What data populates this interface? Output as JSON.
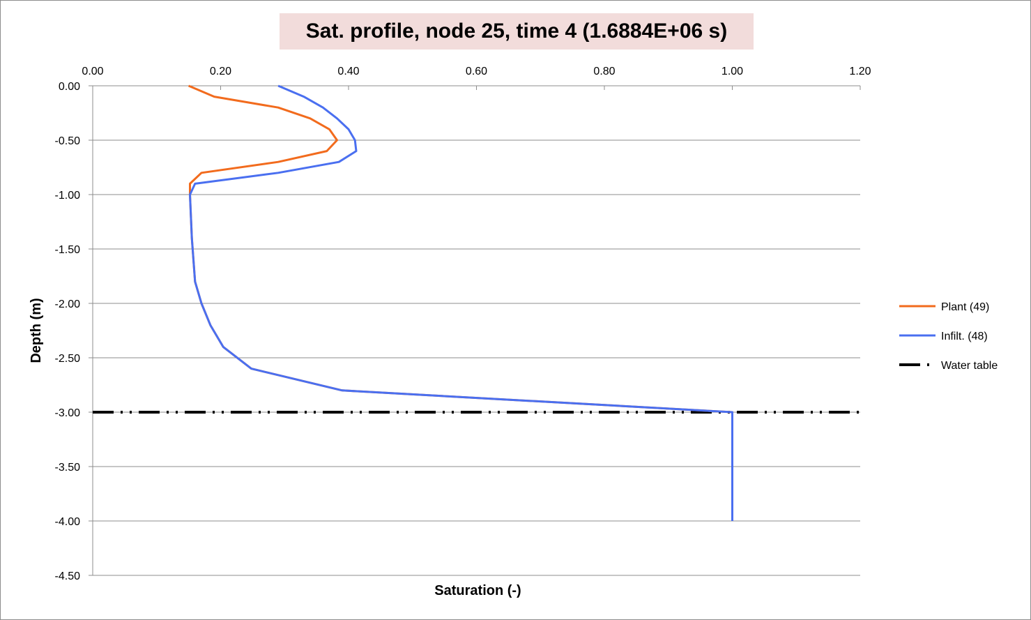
{
  "chart_data": {
    "type": "line",
    "title": "Sat. profile, node 25, time 4 (1.6884E+06 s)",
    "xlabel": "Saturation (-)",
    "ylabel": "Depth (m)",
    "xlim": [
      0,
      1.2
    ],
    "ylim": [
      -4.5,
      0
    ],
    "x_ticks": [
      "0.00",
      "0.20",
      "0.40",
      "0.60",
      "0.80",
      "1.00",
      "1.20"
    ],
    "y_ticks": [
      "0.00",
      "-0.50",
      "-1.00",
      "-1.50",
      "-2.00",
      "-2.50",
      "-3.00",
      "-3.50",
      "-4.00",
      "-4.50"
    ],
    "x_axis_position": "top",
    "grid": "horizontal",
    "legend_position": "right",
    "series": [
      {
        "name": "Plant (49)",
        "color": "#f26b1d",
        "line_style": "solid",
        "points": [
          [
            0.15,
            0.0
          ],
          [
            0.19,
            -0.1
          ],
          [
            0.29,
            -0.2
          ],
          [
            0.34,
            -0.3
          ],
          [
            0.37,
            -0.4
          ],
          [
            0.382,
            -0.5
          ],
          [
            0.366,
            -0.6
          ],
          [
            0.29,
            -0.7
          ],
          [
            0.17,
            -0.8
          ],
          [
            0.152,
            -0.9
          ],
          [
            0.152,
            -1.0
          ],
          [
            0.155,
            -1.4
          ],
          [
            0.16,
            -1.8
          ],
          [
            0.17,
            -2.0
          ],
          [
            0.184,
            -2.2
          ],
          [
            0.204,
            -2.4
          ],
          [
            0.248,
            -2.6
          ],
          [
            0.39,
            -2.8
          ],
          [
            1.0,
            -3.0
          ],
          [
            1.0,
            -4.0
          ]
        ]
      },
      {
        "name": "Infilt. (48)",
        "color": "#4a6ff0",
        "line_style": "solid",
        "points": [
          [
            0.29,
            0.0
          ],
          [
            0.33,
            -0.1
          ],
          [
            0.36,
            -0.2
          ],
          [
            0.382,
            -0.3
          ],
          [
            0.4,
            -0.4
          ],
          [
            0.41,
            -0.5
          ],
          [
            0.412,
            -0.6
          ],
          [
            0.385,
            -0.7
          ],
          [
            0.29,
            -0.8
          ],
          [
            0.16,
            -0.9
          ],
          [
            0.152,
            -1.0
          ],
          [
            0.155,
            -1.4
          ],
          [
            0.16,
            -1.8
          ],
          [
            0.17,
            -2.0
          ],
          [
            0.184,
            -2.2
          ],
          [
            0.204,
            -2.4
          ],
          [
            0.248,
            -2.6
          ],
          [
            0.39,
            -2.8
          ],
          [
            1.0,
            -3.0
          ],
          [
            1.0,
            -4.0
          ]
        ]
      },
      {
        "name": "Water table",
        "color": "#000000",
        "line_style": "dash-dot-dot",
        "points": [
          [
            0.0,
            -3.0
          ],
          [
            1.2,
            -3.0
          ]
        ]
      }
    ]
  }
}
